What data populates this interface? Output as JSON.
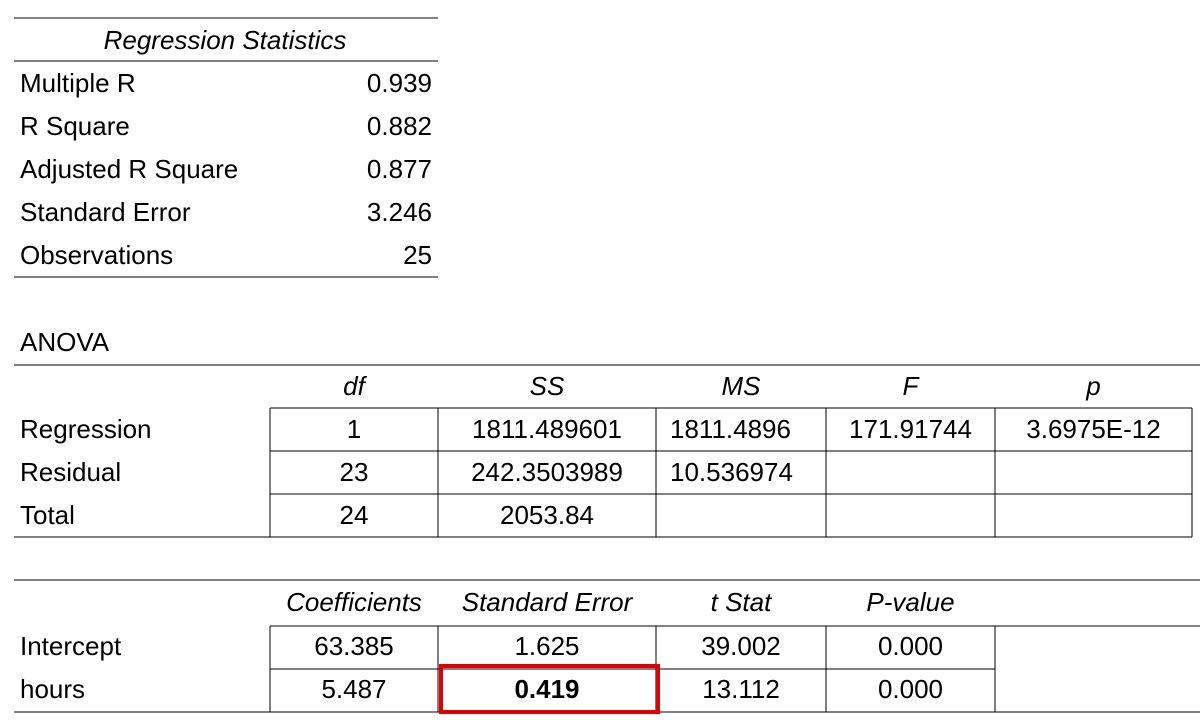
{
  "regression_statistics": {
    "title": "Regression Statistics",
    "rows": [
      [
        "Multiple R",
        "0.939"
      ],
      [
        "R Square",
        "0.882"
      ],
      [
        "Adjusted R Square",
        "0.877"
      ],
      [
        "Standard Error",
        "3.246"
      ],
      [
        "Observations",
        "25"
      ]
    ]
  },
  "anova": {
    "title": "ANOVA",
    "columns": [
      "df",
      "SS",
      "MS",
      "F",
      "p"
    ],
    "rows": [
      [
        "Regression",
        "1",
        "1811.489601",
        "1811.4896",
        "171.91744",
        "3.6975E-12"
      ],
      [
        "Residual",
        "23",
        "242.3503989",
        "10.536974"
      ],
      [
        "Total",
        "24",
        "2053.84"
      ]
    ]
  },
  "coefficients": {
    "columns": [
      "Coefficients",
      "Standard Error",
      "t Stat",
      "P-value"
    ],
    "rows": [
      [
        "Intercept",
        "63.385",
        "1.625",
        "39.002",
        "0.000"
      ],
      [
        "hours",
        "5.487",
        "0.419",
        "13.112",
        "0.000"
      ]
    ]
  }
}
